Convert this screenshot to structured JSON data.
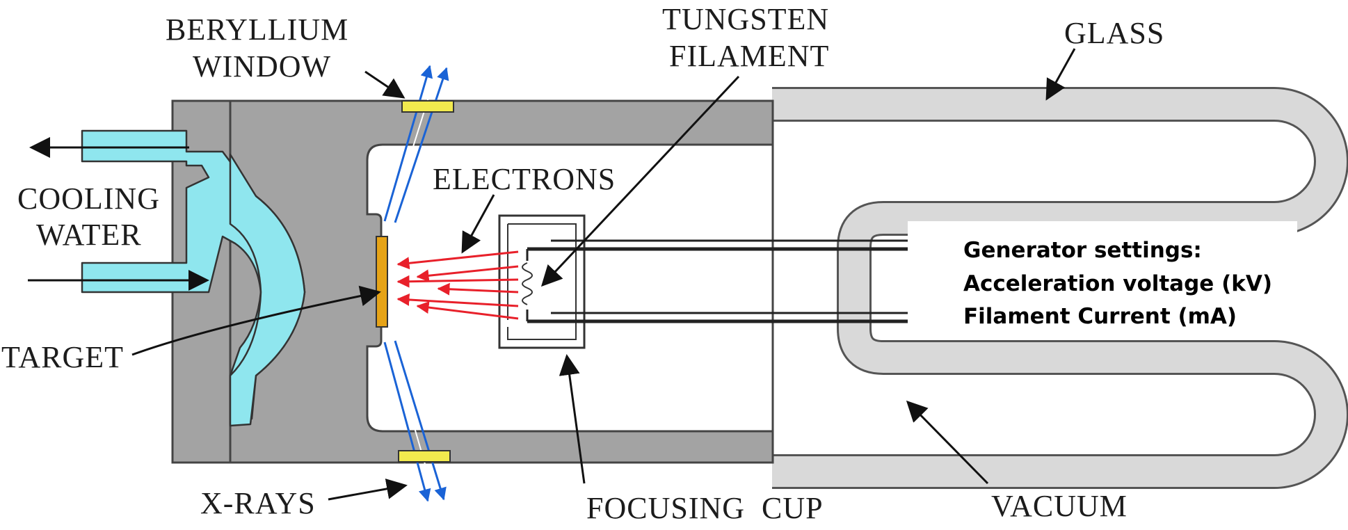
{
  "labels": {
    "beryllium_window": [
      "BERYLLIUM",
      "WINDOW"
    ],
    "tungsten_filament": [
      "TUNGSTEN",
      "FILAMENT"
    ],
    "glass": "GLASS",
    "electrons": "ELECTRONS",
    "cooling_water": [
      "COOLING",
      "WATER"
    ],
    "target": "TARGET",
    "x_rays": "X-RAYS",
    "focusing_cup": "FOCUSING  CUP",
    "vacuum": "VACUUM"
  },
  "generator": {
    "heading": "Generator settings:",
    "line1": "Acceleration voltage (kV)",
    "line2": "Filament Current (mA)"
  },
  "colors": {
    "housing": "#a3a3a3",
    "glass_tube": "#d9d9d9",
    "cooling_water": "#8fe6ee",
    "target": "#e6a317",
    "window": "#f2ea4e",
    "electrons": "#e8202a",
    "xrays": "#1a63d6"
  }
}
